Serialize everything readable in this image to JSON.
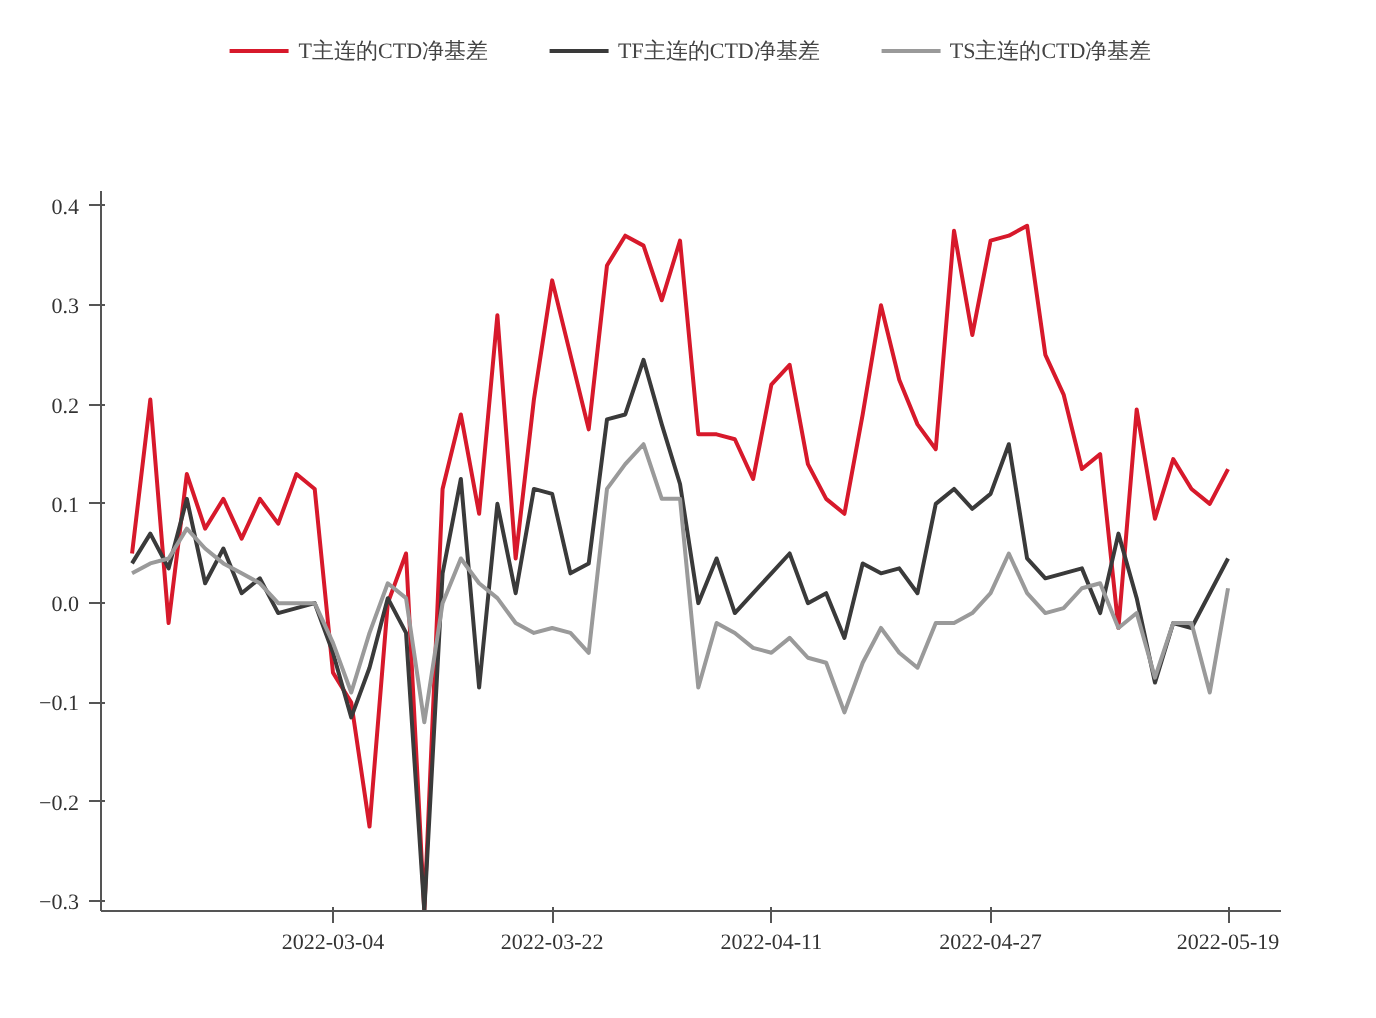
{
  "chart_data": {
    "type": "line",
    "legend": "top",
    "grid": false,
    "line_style": "solid",
    "marker": "none",
    "categories": [
      null,
      null,
      null,
      null,
      null,
      null,
      null,
      null,
      null,
      null,
      null,
      "2022-03-04",
      null,
      null,
      null,
      null,
      null,
      null,
      null,
      null,
      null,
      null,
      null,
      "2022-03-22",
      null,
      null,
      null,
      null,
      null,
      null,
      null,
      null,
      null,
      null,
      null,
      "2022-04-11",
      null,
      null,
      null,
      null,
      null,
      null,
      null,
      null,
      null,
      null,
      null,
      "2022-04-27",
      null,
      null,
      null,
      null,
      null,
      null,
      null,
      null,
      null,
      null,
      null,
      null,
      "2022-05-19"
    ],
    "ylim": [
      -0.31,
      0.415
    ],
    "yticks": [
      0.4,
      0.3,
      0.2,
      0.1,
      {
        "value": 0,
        "label": "0.0"
      },
      -0.1,
      -0.2,
      -0.3
    ],
    "series": [
      {
        "name": "T主连的CTD净基差",
        "color": "#d7192b",
        "values": [
          0.05,
          0.205,
          -0.02,
          0.13,
          0.075,
          0.105,
          0.065,
          0.105,
          0.08,
          0.13,
          0.115,
          -0.07,
          -0.1,
          -0.225,
          0.0,
          0.05,
          -0.31,
          0.115,
          0.19,
          0.09,
          0.29,
          0.045,
          0.205,
          0.325,
          0.25,
          0.175,
          0.34,
          0.37,
          0.36,
          0.305,
          0.365,
          0.17,
          0.17,
          0.165,
          0.125,
          0.22,
          0.24,
          0.14,
          0.105,
          0.09,
          0.19,
          0.3,
          0.225,
          0.18,
          0.155,
          0.375,
          0.27,
          0.365,
          0.37,
          0.38,
          0.25,
          0.21,
          0.135,
          0.15,
          -0.025,
          0.195,
          0.085,
          0.145,
          0.115,
          0.1,
          0.135
        ]
      },
      {
        "name": "TF主连的CTD净基差",
        "color": "#3a3a3a",
        "values": [
          0.04,
          0.07,
          0.035,
          0.105,
          0.02,
          0.055,
          0.01,
          0.025,
          -0.01,
          -0.005,
          0.0,
          -0.05,
          -0.115,
          -0.065,
          0.005,
          -0.03,
          -0.31,
          0.03,
          0.125,
          -0.085,
          0.1,
          0.01,
          0.115,
          0.11,
          0.03,
          0.04,
          0.185,
          0.19,
          0.245,
          0.18,
          0.12,
          0.0,
          0.045,
          -0.01,
          0.01,
          0.03,
          0.05,
          0.0,
          0.01,
          -0.035,
          0.04,
          0.03,
          0.035,
          0.01,
          0.1,
          0.115,
          0.095,
          0.11,
          0.16,
          0.045,
          0.025,
          0.03,
          0.035,
          -0.01,
          0.07,
          0.005,
          -0.08,
          -0.02,
          -0.025,
          0.01,
          0.045
        ]
      },
      {
        "name": "TS主连的CTD净基差",
        "color": "#9a9a9a",
        "values": [
          0.03,
          0.04,
          0.045,
          0.075,
          0.055,
          0.04,
          0.03,
          0.02,
          0.0,
          0.0,
          0.0,
          -0.04,
          -0.09,
          -0.03,
          0.02,
          0.005,
          -0.12,
          0.0,
          0.045,
          0.02,
          0.005,
          -0.02,
          -0.03,
          -0.025,
          -0.03,
          -0.05,
          0.115,
          0.14,
          0.16,
          0.105,
          0.105,
          -0.085,
          -0.02,
          -0.03,
          -0.045,
          -0.05,
          -0.035,
          -0.055,
          -0.06,
          -0.11,
          -0.06,
          -0.025,
          -0.05,
          -0.065,
          -0.02,
          -0.02,
          -0.01,
          0.01,
          0.05,
          0.01,
          -0.01,
          -0.005,
          0.015,
          0.02,
          -0.025,
          -0.01,
          -0.075,
          -0.02,
          -0.02,
          -0.09,
          0.015
        ]
      }
    ]
  }
}
